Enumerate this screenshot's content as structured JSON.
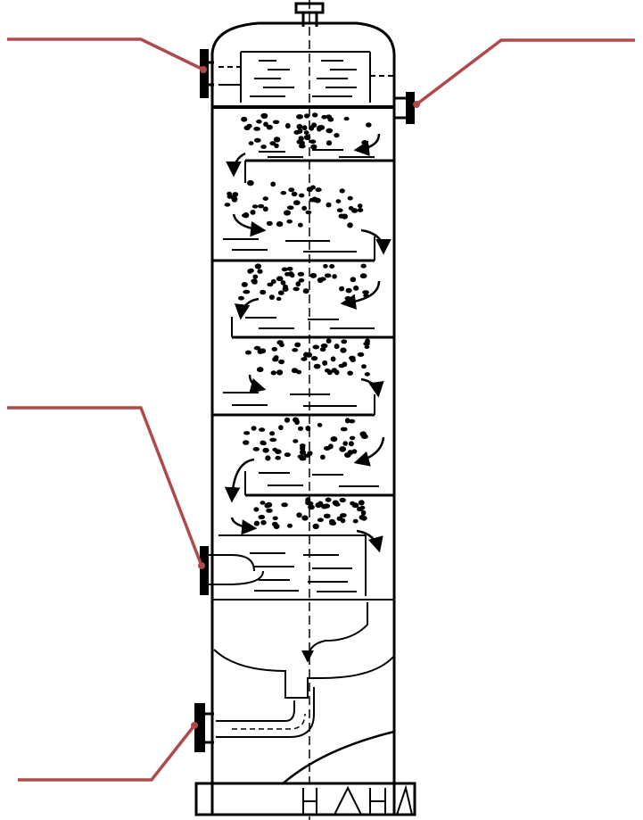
{
  "diagram": {
    "subject": "sieve-tray-distillation-column",
    "tray_count": 6,
    "colors": {
      "outline": "#000000",
      "background": "#ffffff",
      "callout": "#b04a4a"
    },
    "callouts": [
      {
        "id": "top-left-nozzle",
        "label": ""
      },
      {
        "id": "top-right-nozzle",
        "label": ""
      },
      {
        "id": "middle-left-nozzle",
        "label": ""
      },
      {
        "id": "bottom-left-nozzle",
        "label": ""
      }
    ]
  }
}
